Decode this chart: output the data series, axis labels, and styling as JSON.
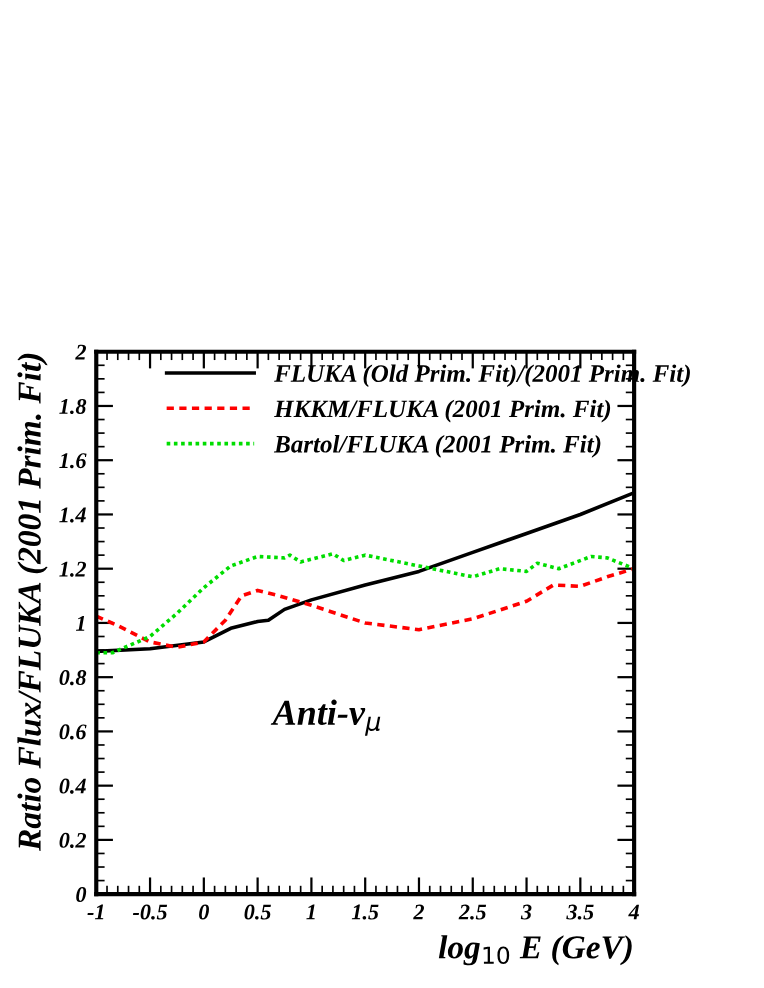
{
  "chart_data": {
    "type": "line",
    "xlabel": "log$_{10}$ E (GeV)",
    "ylabel": "Ratio Flux/FLUKA (2001 Prim. Fit)",
    "annotations": [
      "Anti-ν$_{μ}$"
    ],
    "xlim": [
      -1,
      4
    ],
    "ylim": [
      0,
      2
    ],
    "xticks": [
      -1,
      -0.5,
      0,
      0.5,
      1,
      1.5,
      2,
      2.5,
      3,
      3.5,
      4
    ],
    "yticks": [
      0,
      0.2,
      0.4,
      0.6,
      0.8,
      1,
      1.2,
      1.4,
      1.6,
      1.8,
      2
    ],
    "grid": false,
    "legend": "top right",
    "marker": "none",
    "series": [
      {
        "name": "FLUKA (Old Prim. Fit)/(2001 Prim. Fit)",
        "color": "#000000",
        "line_style": "solid",
        "x": [
          -1,
          -0.5,
          0,
          0.25,
          0.5,
          0.6,
          0.75,
          1,
          1.5,
          2,
          2.5,
          3,
          3.5,
          4
        ],
        "values": [
          0.895,
          0.905,
          0.93,
          0.98,
          1.005,
          1.01,
          1.05,
          1.085,
          1.14,
          1.19,
          1.26,
          1.33,
          1.4,
          1.48
        ]
      },
      {
        "name": "HKKM/FLUKA (2001 Prim. Fit)",
        "color": "#ff0000",
        "line_style": "dashed",
        "x": [
          -1,
          -0.8,
          -0.5,
          -0.25,
          0,
          0.2,
          0.35,
          0.5,
          0.7,
          1,
          1.5,
          2,
          2.5,
          3,
          3.25,
          3.5,
          3.75,
          4
        ],
        "values": [
          1.025,
          0.99,
          0.93,
          0.91,
          0.93,
          1.01,
          1.1,
          1.12,
          1.1,
          1.065,
          1.0,
          0.975,
          1.015,
          1.08,
          1.14,
          1.135,
          1.17,
          1.2
        ]
      },
      {
        "name": "Bartol/FLUKA (2001 Prim. Fit)",
        "color": "#00dd00",
        "line_style": "dotted",
        "x": [
          -1,
          -0.85,
          -0.5,
          -0.25,
          0,
          0.25,
          0.5,
          0.75,
          0.8,
          0.9,
          1.2,
          1.3,
          1.5,
          2,
          2.25,
          2.5,
          2.75,
          3,
          3.1,
          3.3,
          3.6,
          3.75,
          4
        ],
        "values": [
          0.89,
          0.89,
          0.95,
          1.035,
          1.13,
          1.21,
          1.245,
          1.24,
          1.25,
          1.225,
          1.255,
          1.23,
          1.25,
          1.21,
          1.19,
          1.17,
          1.2,
          1.19,
          1.22,
          1.2,
          1.245,
          1.24,
          1.2
        ]
      }
    ]
  }
}
